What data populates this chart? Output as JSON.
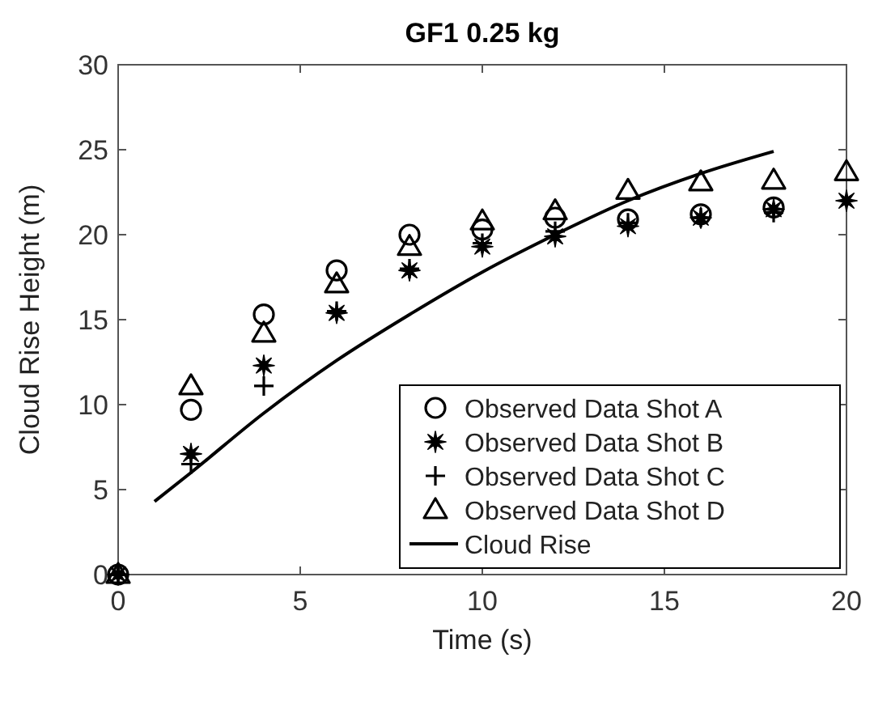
{
  "chart_data": {
    "type": "scatter",
    "title": "GF1 0.25 kg",
    "xlabel": "Time (s)",
    "ylabel": "Cloud Rise Height (m)",
    "xlim": [
      0,
      20
    ],
    "ylim": [
      0,
      30
    ],
    "xticks": [
      0,
      5,
      10,
      15,
      20
    ],
    "yticks": [
      0,
      5,
      10,
      15,
      20,
      25,
      30
    ],
    "grid": false,
    "legend": "bottom right",
    "series": [
      {
        "name": "Observed Data Shot A",
        "color": "#000000",
        "marker": "circle",
        "x": [
          0,
          2,
          4,
          6,
          8,
          10,
          12,
          14,
          16,
          18
        ],
        "values": [
          0,
          9.7,
          15.3,
          17.9,
          20,
          20.3,
          21,
          20.9,
          21.2,
          21.6
        ]
      },
      {
        "name": "Observed Data Shot B",
        "color": "#000000",
        "marker": "star",
        "x": [
          0,
          2,
          4,
          6,
          8,
          10,
          12,
          14,
          16,
          18,
          20
        ],
        "values": [
          0,
          7.1,
          12.3,
          15.4,
          17.9,
          19.3,
          19.9,
          20.5,
          21,
          21.5,
          22
        ]
      },
      {
        "name": "Observed Data Shot C",
        "color": "#000000",
        "marker": "cross",
        "x": [
          0,
          2,
          4,
          6,
          8,
          10,
          12,
          14,
          16,
          18
        ],
        "values": [
          0,
          6.5,
          11.1,
          15.5,
          18,
          19.5,
          20.2,
          20.7,
          21,
          21.3
        ]
      },
      {
        "name": "Observed Data Shot D",
        "color": "#000000",
        "marker": "triangle",
        "x": [
          0,
          2,
          4,
          6,
          8,
          10,
          12,
          14,
          16,
          18,
          20
        ],
        "values": [
          0,
          11.1,
          14.2,
          17.1,
          19.3,
          20.8,
          21.4,
          22.6,
          23.1,
          23.2,
          23.7
        ]
      },
      {
        "name": "Cloud Rise",
        "type": "line",
        "color": "#000000",
        "marker": "none",
        "line_style": "solid",
        "x": [
          1,
          2,
          4,
          6,
          8,
          10,
          12,
          14,
          16,
          18
        ],
        "values": [
          4.3,
          6,
          9.5,
          12.6,
          15.3,
          17.8,
          20,
          22,
          23.6,
          24.9
        ]
      }
    ]
  }
}
